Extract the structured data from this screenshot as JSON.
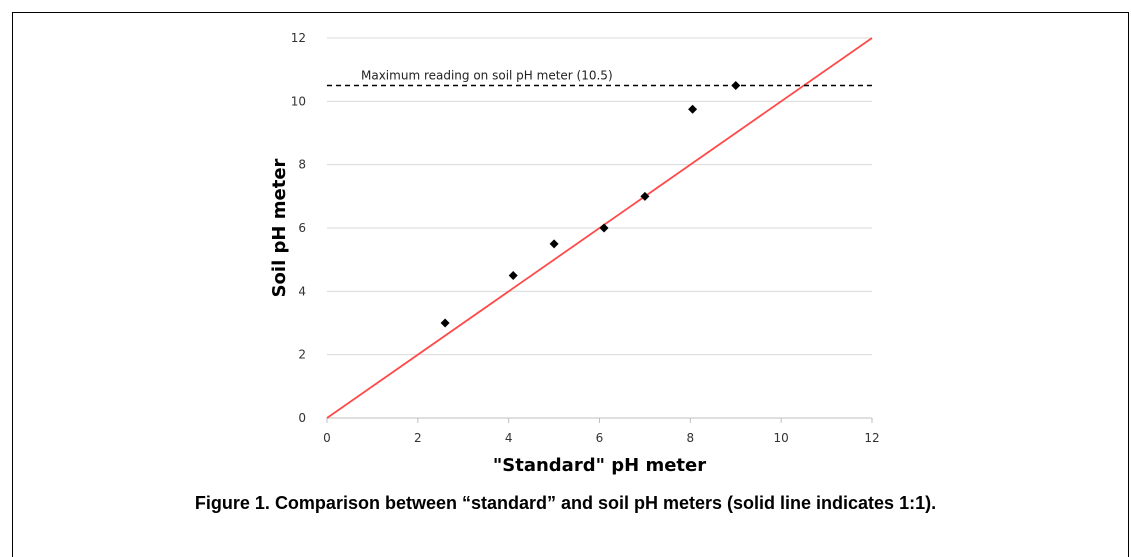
{
  "chart_data": {
    "type": "scatter",
    "xlabel": "\"Standard\" pH meter",
    "ylabel": "Soil pH meter",
    "xlim": [
      0,
      12
    ],
    "ylim": [
      0,
      12
    ],
    "xticks": [
      0,
      2,
      4,
      6,
      8,
      10,
      12
    ],
    "yticks": [
      0,
      2,
      4,
      6,
      8,
      10,
      12
    ],
    "grid": "horizontal",
    "series": [
      {
        "marker": "diamond",
        "color": "#000000",
        "points": [
          {
            "x": 2.6,
            "y": 3.0
          },
          {
            "x": 4.1,
            "y": 4.5
          },
          {
            "x": 5.0,
            "y": 5.5
          },
          {
            "x": 6.1,
            "y": 6.0
          },
          {
            "x": 7.0,
            "y": 7.0
          },
          {
            "x": 8.05,
            "y": 9.75
          },
          {
            "x": 9.0,
            "y": 10.5
          }
        ]
      }
    ],
    "reference_lines": [
      {
        "kind": "one_to_one",
        "from": [
          0,
          0
        ],
        "to": [
          12,
          12
        ],
        "color": "#ff4a4a",
        "style": "solid"
      },
      {
        "kind": "horizontal",
        "y": 10.5,
        "color": "#000000",
        "style": "dashed",
        "label": "Maximum reading on soil pH meter (10.5)"
      }
    ]
  },
  "caption": "Figure 1. Comparison between “standard” and soil pH meters (solid line indicates 1:1)."
}
